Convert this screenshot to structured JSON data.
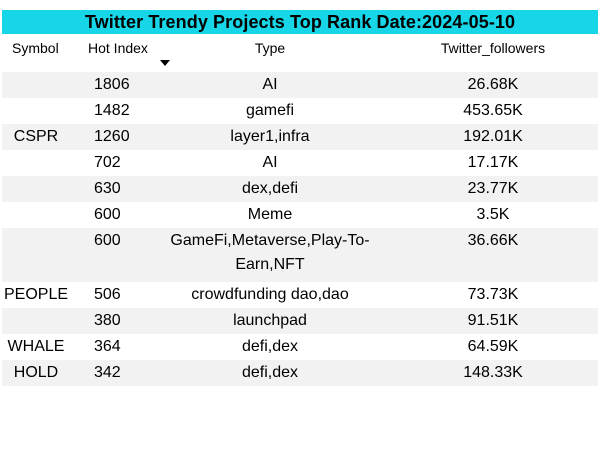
{
  "title": "Twitter Trendy Projects Top Rank Date:2024-05-10",
  "columns": {
    "symbol": "Symbol",
    "hot_index": "Hot Index",
    "type": "Type",
    "twitter_followers": "Twitter_followers"
  },
  "sort": {
    "column": "Hot Index",
    "direction": "descending"
  },
  "colors": {
    "title_bg": "#16d6e8",
    "row_shade": "#f2f2f2"
  },
  "rows": [
    {
      "symbol": "",
      "hot_index": "1806",
      "type": "AI",
      "twitter_followers": "26.68K"
    },
    {
      "symbol": "",
      "hot_index": "1482",
      "type": "gamefi",
      "twitter_followers": "453.65K"
    },
    {
      "symbol": "CSPR",
      "hot_index": "1260",
      "type": "layer1,infra",
      "twitter_followers": "192.01K"
    },
    {
      "symbol": "",
      "hot_index": "702",
      "type": "AI",
      "twitter_followers": "17.17K"
    },
    {
      "symbol": "",
      "hot_index": "630",
      "type": "dex,defi",
      "twitter_followers": "23.77K"
    },
    {
      "symbol": "",
      "hot_index": "600",
      "type": "Meme",
      "twitter_followers": "3.5K"
    },
    {
      "symbol": "",
      "hot_index": "600",
      "type": "GameFi,Metaverse,Play-To-Earn,NFT",
      "twitter_followers": "36.66K"
    },
    {
      "symbol": "PEOPLE",
      "hot_index": "506",
      "type": "crowdfunding dao,dao",
      "twitter_followers": "73.73K"
    },
    {
      "symbol": "",
      "hot_index": "380",
      "type": "launchpad",
      "twitter_followers": "91.51K"
    },
    {
      "symbol": "WHALE",
      "hot_index": "364",
      "type": "defi,dex",
      "twitter_followers": "64.59K"
    },
    {
      "symbol": "HOLD",
      "hot_index": "342",
      "type": "defi,dex",
      "twitter_followers": "148.33K"
    }
  ]
}
